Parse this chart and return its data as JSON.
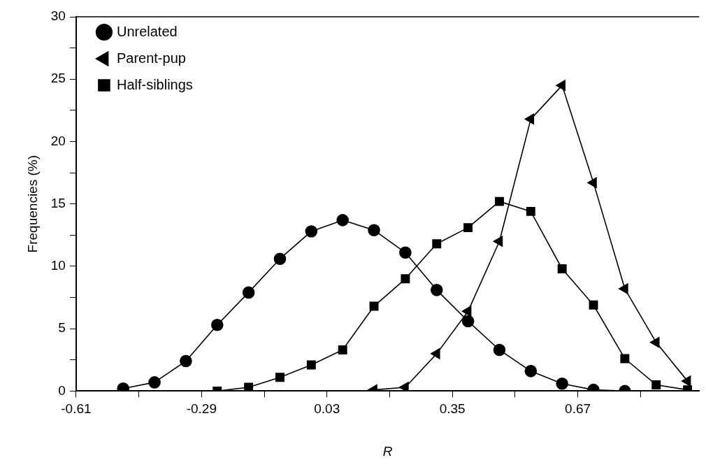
{
  "chart_data": {
    "type": "line",
    "xlabel": "R",
    "ylabel": "Frequencies (%)",
    "xlim": [
      -0.61,
      0.98
    ],
    "xticks": [
      -0.61,
      {
        "value": -0.45,
        "label": null
      },
      -0.29,
      {
        "value": -0.13,
        "label": null
      },
      0.03,
      {
        "value": 0.19,
        "label": null
      },
      0.35,
      {
        "value": 0.51,
        "label": null
      },
      0.67,
      {
        "value": 0.83,
        "label": null
      }
    ],
    "ylim": [
      0,
      30
    ],
    "yticks": [
      0,
      {
        "value": 2.5,
        "label": null
      },
      5,
      {
        "value": 7.5,
        "label": null
      },
      10,
      {
        "value": 12.5,
        "label": null
      },
      15,
      {
        "value": 17.5,
        "label": null
      },
      20,
      {
        "value": 22.5,
        "label": null
      },
      25,
      {
        "value": 27.5,
        "label": null
      },
      30
    ],
    "grid": false,
    "legend": "top left",
    "line_style": "solid",
    "series": [
      {
        "name": "Unrelated",
        "color": "#000000",
        "marker": "circle",
        "x": [
          -0.49,
          -0.41,
          -0.33,
          -0.25,
          -0.17,
          -0.09,
          -0.01,
          0.07,
          0.15,
          0.23,
          0.31,
          0.39,
          0.47,
          0.55,
          0.63,
          0.71,
          0.79
        ],
        "values": [
          0.2,
          0.7,
          2.4,
          5.3,
          7.9,
          10.6,
          12.8,
          13.7,
          12.9,
          11.1,
          8.1,
          5.6,
          3.3,
          1.6,
          0.6,
          0.1,
          0
        ]
      },
      {
        "name": "Parent-pup",
        "color": "#000000",
        "marker": "triangle",
        "x": [
          0.15,
          0.23,
          0.31,
          0.39,
          0.47,
          0.55,
          0.63,
          0.71,
          0.79,
          0.87,
          0.95
        ],
        "values": [
          0.1,
          0.3,
          3.0,
          6.4,
          12.0,
          21.8,
          24.5,
          16.7,
          8.2,
          3.9,
          0.8
        ]
      },
      {
        "name": "Half-siblings",
        "color": "#000000",
        "marker": "square",
        "x": [
          -0.25,
          -0.17,
          -0.09,
          -0.01,
          0.07,
          0.15,
          0.23,
          0.31,
          0.39,
          0.47,
          0.55,
          0.63,
          0.71,
          0.79,
          0.87,
          0.95
        ],
        "values": [
          0,
          0.3,
          1.1,
          2.1,
          3.3,
          6.8,
          9.0,
          11.8,
          13.1,
          15.2,
          14.4,
          9.8,
          6.9,
          2.6,
          0.5,
          0.1
        ]
      }
    ]
  }
}
